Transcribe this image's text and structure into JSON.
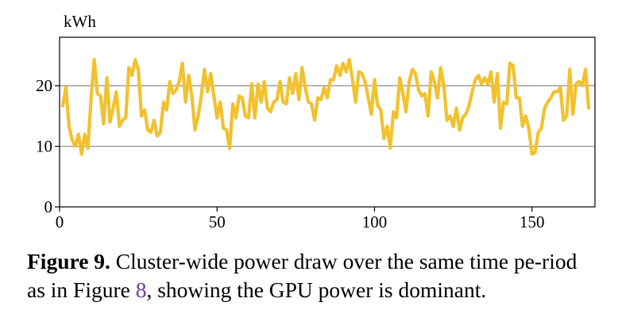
{
  "chart_data": {
    "type": "line",
    "ylabel": "kWh",
    "xlabel": "",
    "xlim": [
      0,
      170
    ],
    "ylim": [
      0,
      28
    ],
    "x_ticks": [
      0,
      50,
      100,
      150
    ],
    "y_ticks": [
      0,
      10,
      20
    ],
    "gridlines_y": [
      10,
      20
    ],
    "grid": "horizontal",
    "line_color": "#f2c12e",
    "series": [
      {
        "values": [
          16.7,
          19.7,
          13.3,
          11.0,
          10.0,
          12.0,
          8.7,
          12.0,
          9.7,
          18.0,
          24.3,
          18.7,
          18.3,
          13.7,
          21.3,
          14.0,
          16.3,
          19.0,
          13.3,
          14.3,
          14.7,
          23.0,
          21.7,
          24.3,
          22.7,
          15.0,
          16.0,
          12.7,
          12.3,
          14.3,
          11.7,
          12.3,
          17.3,
          16.0,
          20.7,
          18.7,
          19.3,
          20.7,
          23.7,
          17.3,
          21.7,
          18.3,
          12.7,
          15.0,
          18.3,
          22.7,
          19.0,
          22.0,
          18.3,
          14.7,
          17.3,
          13.0,
          12.7,
          9.7,
          17.0,
          14.7,
          18.3,
          18.0,
          15.0,
          14.7,
          20.3,
          14.7,
          20.3,
          17.3,
          20.7,
          16.3,
          15.7,
          17.3,
          17.7,
          20.7,
          17.3,
          17.0,
          21.3,
          18.7,
          22.0,
          17.7,
          23.0,
          19.7,
          17.3,
          17.0,
          14.3,
          18.0,
          17.7,
          19.7,
          18.0,
          21.0,
          21.0,
          23.3,
          21.7,
          23.7,
          22.3,
          24.3,
          21.0,
          17.3,
          22.3,
          22.0,
          20.7,
          18.0,
          15.3,
          21.0,
          16.7,
          16.0,
          11.3,
          13.3,
          9.7,
          15.7,
          14.7,
          21.3,
          18.7,
          15.7,
          20.7,
          22.7,
          22.0,
          19.3,
          18.3,
          18.7,
          15.0,
          22.3,
          20.7,
          18.0,
          23.0,
          20.0,
          14.3,
          15.0,
          13.3,
          16.3,
          12.7,
          14.7,
          15.3,
          16.7,
          19.0,
          21.0,
          21.7,
          20.3,
          21.3,
          20.3,
          22.3,
          17.3,
          22.0,
          13.0,
          17.3,
          17.0,
          23.7,
          23.3,
          18.0,
          18.0,
          13.3,
          15.0,
          13.0,
          8.7,
          9.0,
          12.3,
          13.0,
          16.3,
          17.3,
          18.0,
          19.0,
          19.0,
          19.7,
          14.3,
          15.0,
          22.7,
          15.3,
          20.3,
          20.7,
          20.0,
          22.7,
          16.3
        ]
      }
    ]
  },
  "caption": {
    "label": "Figure 9.",
    "text_before": "Cluster-wide power draw over the same time pe-riod as in Figure ",
    "ref": "8",
    "text_after": ", showing the GPU power is dominant."
  }
}
